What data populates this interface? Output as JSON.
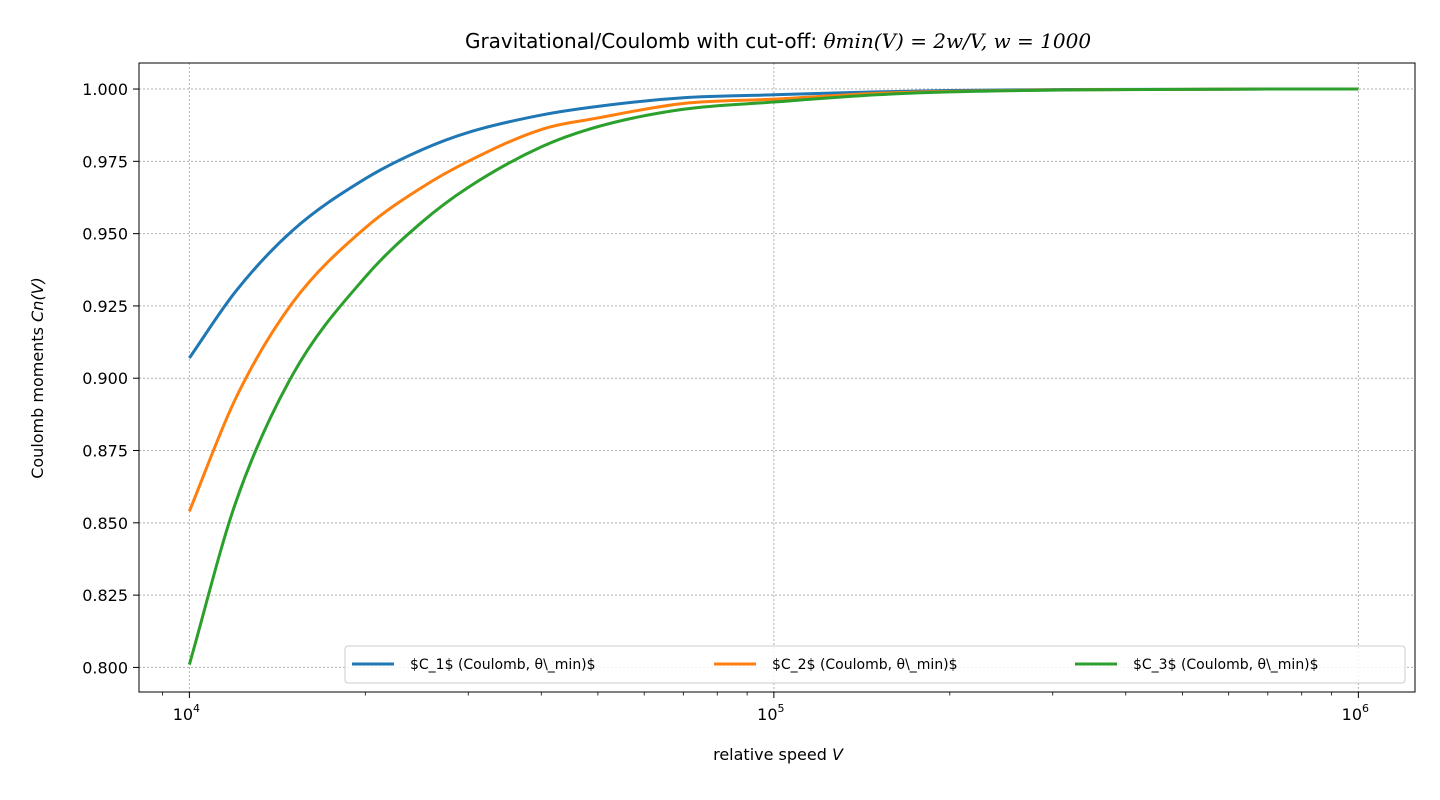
{
  "chart_data": {
    "type": "line",
    "title_main": "Gravitational/Coulomb with cut-off: ",
    "title_math": "θmin(V) = 2w/V,  w = 1000",
    "xlabel_text": "relative speed ",
    "xlabel_var": "V",
    "ylabel_text": "Coulomb moments ",
    "ylabel_var": "Cn(V)",
    "x_scale": "log",
    "xlim": [
      8200,
      1250000
    ],
    "ylim": [
      0.7915,
      1.009
    ],
    "grid": true,
    "legend_placement": "lower-right",
    "legend_columns": 3,
    "x_major_ticks": [
      10000,
      100000,
      1000000
    ],
    "x_tick_labels": [
      {
        "base": "10",
        "exp": "4"
      },
      {
        "base": "10",
        "exp": "5"
      },
      {
        "base": "10",
        "exp": "6"
      }
    ],
    "y_ticks": [
      0.8,
      0.825,
      0.85,
      0.875,
      0.9,
      0.925,
      0.95,
      0.975,
      1.0
    ],
    "y_tick_labels": [
      "0.800",
      "0.825",
      "0.850",
      "0.875",
      "0.900",
      "0.925",
      "0.950",
      "0.975",
      "1.000"
    ],
    "x": [
      10000,
      12000,
      15000,
      20000,
      25000,
      30000,
      40000,
      50000,
      70000,
      100000,
      150000,
      200000,
      300000,
      500000,
      700000,
      1000000
    ],
    "series": [
      {
        "name": "$C_1$ (Coulomb, θ\\_min)$",
        "color": "#1f77b4",
        "values": [
          0.907,
          0.93,
          0.951,
          0.969,
          0.979,
          0.985,
          0.991,
          0.994,
          0.997,
          0.998,
          0.999,
          0.9995,
          0.9998,
          0.9999,
          1.0,
          1.0
        ]
      },
      {
        "name": "$C_2$ (Coulomb, θ\\_min)$",
        "color": "#ff7f0e",
        "values": [
          0.854,
          0.893,
          0.926,
          0.952,
          0.966,
          0.975,
          0.986,
          0.99,
          0.995,
          0.9965,
          0.9985,
          0.9992,
          0.9997,
          0.9999,
          1.0,
          1.0
        ]
      },
      {
        "name": "$C_3$ (Coulomb, θ\\_min)$",
        "color": "#2ca02c",
        "values": [
          0.801,
          0.857,
          0.901,
          0.935,
          0.954,
          0.966,
          0.98,
          0.987,
          0.993,
          0.9955,
          0.998,
          0.999,
          0.9996,
          0.9999,
          1.0,
          1.0
        ]
      }
    ]
  }
}
